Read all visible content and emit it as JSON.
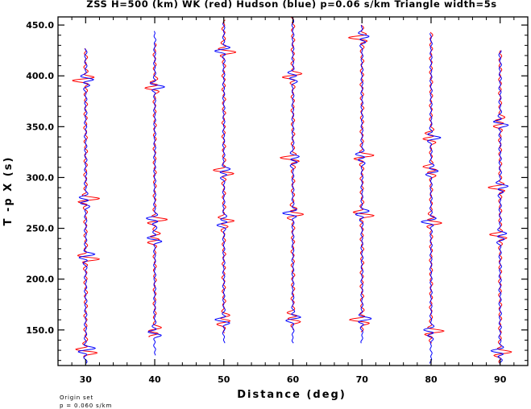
{
  "chart_data": {
    "type": "line",
    "title": "ZSS H=500 (km) WK (red) Hudson (blue) p=0.06 s/km Triangle width=5s",
    "xlabel": "Distance (deg)",
    "ylabel": "T -p X (s)",
    "xlim": [
      26,
      94
    ],
    "ylim": [
      115,
      458
    ],
    "xticks": [
      "30",
      "40",
      "50",
      "60",
      "70",
      "80",
      "90"
    ],
    "yticks": [
      "150.0",
      "200.0",
      "250.0",
      "300.0",
      "350.0",
      "400.0",
      "450.0"
    ],
    "grid": false,
    "legend": "none",
    "series": [
      {
        "color": "#ff0000",
        "traces": [
          {
            "distance": 30,
            "tp_range": [
              123,
              427
            ],
            "feature_tp": [
              130,
              220,
              278,
              397
            ],
            "amp": 7,
            "smax": 10
          },
          {
            "distance": 40,
            "tp_range": [
              143,
              432
            ],
            "feature_tp": [
              148,
              240,
              258,
              390
            ],
            "amp": 6,
            "smax": 9
          },
          {
            "distance": 50,
            "tp_range": [
              147,
              455
            ],
            "feature_tp": [
              160,
              256,
              305,
              425
            ],
            "amp": 7,
            "smax": 9
          },
          {
            "distance": 60,
            "tp_range": [
              150,
              458
            ],
            "feature_tp": [
              162,
              265,
              318,
              399
            ],
            "amp": 7,
            "smax": 9
          },
          {
            "distance": 70,
            "tp_range": [
              148,
              450
            ],
            "feature_tp": [
              160,
              264,
              320,
              437
            ],
            "amp": 7,
            "smax": 9
          },
          {
            "distance": 80,
            "tp_range": [
              137,
              443
            ],
            "feature_tp": [
              148,
              257,
              307,
              340
            ],
            "amp": 6,
            "smax": 9
          },
          {
            "distance": 90,
            "tp_range": [
              117,
              425
            ],
            "feature_tp": [
              128,
              242,
              290,
              354
            ],
            "amp": 6,
            "smax": 8
          }
        ]
      },
      {
        "color": "#0000ff",
        "traces": [
          {
            "distance": 30,
            "tp_range": [
              117,
              427
            ],
            "feature_tp": [
              130,
              222,
              277,
              395
            ],
            "amp": 5,
            "smax": 9
          },
          {
            "distance": 40,
            "tp_range": [
              125,
              444
            ],
            "feature_tp": [
              148,
              240,
              258,
              390
            ],
            "amp": 4,
            "smax": 8
          },
          {
            "distance": 50,
            "tp_range": [
              137,
              452
            ],
            "feature_tp": [
              160,
              256,
              305,
              425
            ],
            "amp": 4,
            "smax": 8
          },
          {
            "distance": 60,
            "tp_range": [
              137,
              458
            ],
            "feature_tp": [
              162,
              265,
              318,
              399
            ],
            "amp": 4,
            "smax": 8
          },
          {
            "distance": 70,
            "tp_range": [
              137,
              450
            ],
            "feature_tp": [
              160,
              264,
              320,
              437
            ],
            "amp": 4,
            "smax": 8
          },
          {
            "distance": 80,
            "tp_range": [
              117,
              442
            ],
            "feature_tp": [
              148,
              257,
              307,
              340
            ],
            "amp": 4,
            "smax": 8
          },
          {
            "distance": 90,
            "tp_range": [
              117,
              425
            ],
            "feature_tp": [
              128,
              242,
              290,
              354
            ],
            "amp": 5,
            "smax": 8
          }
        ]
      }
    ]
  },
  "footnote": {
    "line1": "Origin set",
    "line2": "p = 0.060 s/km"
  }
}
